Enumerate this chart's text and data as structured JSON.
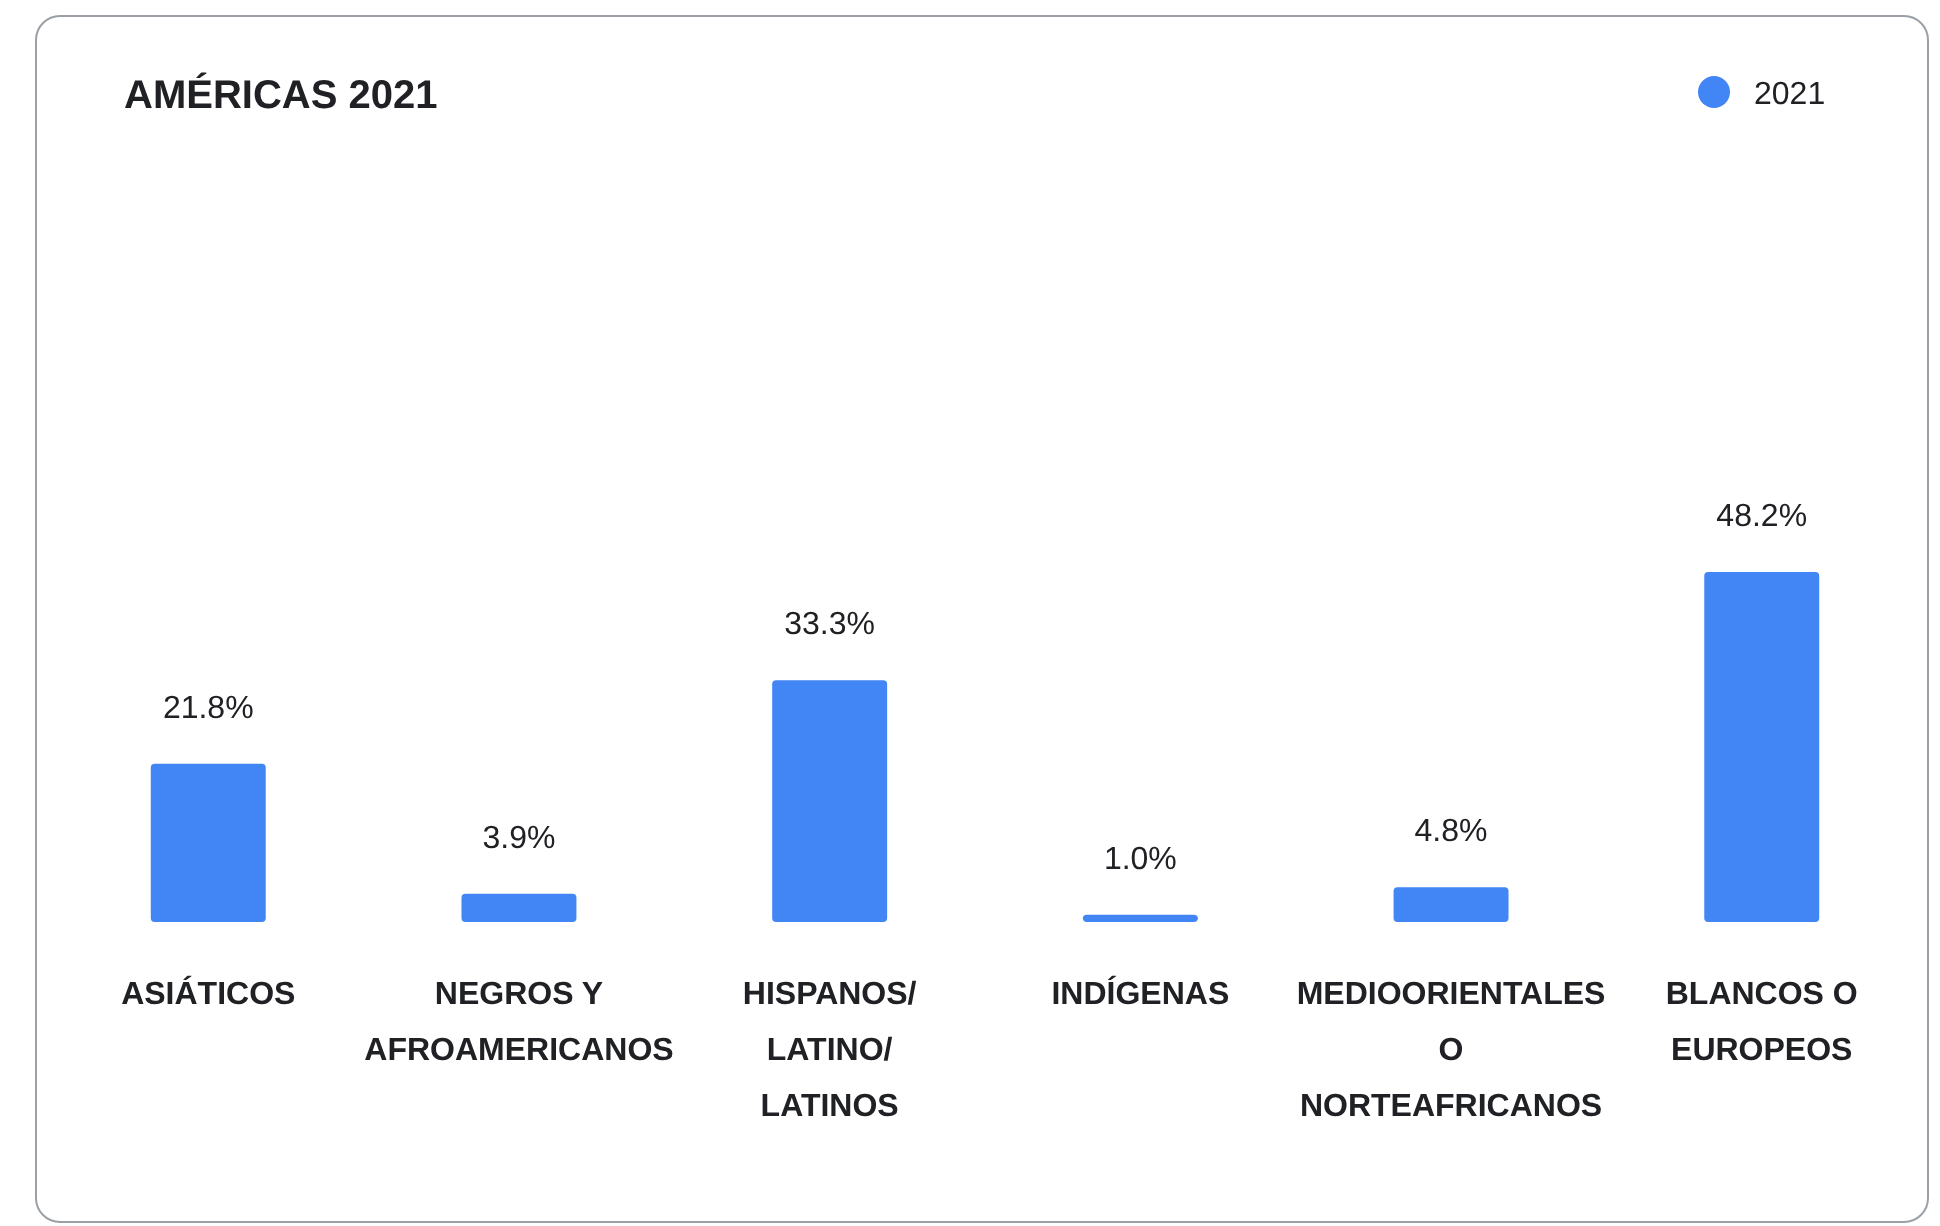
{
  "chart_data": {
    "type": "bar",
    "title": "AMÉRICAS 2021",
    "categories": [
      "ASIÁTICOS",
      "NEGROS Y AFROAMERICANOS",
      "HISPANOS/LATINO/LATINOS",
      "INDÍGENAS",
      "MEDIOORIENTALES O NORTEAFRICANOS",
      "BLANCOS O EUROPEOS"
    ],
    "series": [
      {
        "name": "2021",
        "color": "#4285f4",
        "values": [
          21.8,
          3.9,
          33.3,
          1.0,
          4.8,
          48.2
        ],
        "value_labels": [
          "21.8%",
          "3.9%",
          "33.3%",
          "1.0%",
          "4.8%",
          "48.2%"
        ]
      }
    ],
    "legend": "top right"
  }
}
